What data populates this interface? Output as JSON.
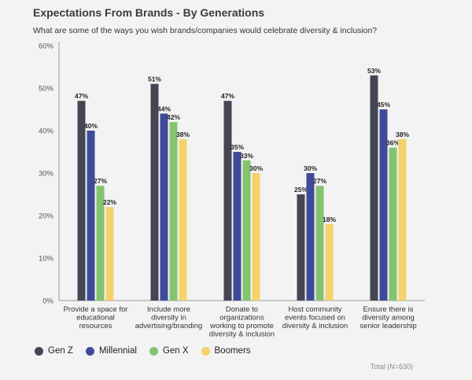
{
  "header": {
    "title": "Expectations From Brands - By Generations",
    "subtitle": "What are some of the ways you wish brands/companies would celebrate diversity & inclusion?"
  },
  "footer": {
    "note": "Total (N=630)"
  },
  "colors": {
    "Gen Z": "#444654",
    "Millennial": "#3f4b9a",
    "Gen X": "#84c36f",
    "Boomers": "#f5d36a"
  },
  "chart_data": {
    "type": "bar",
    "title": "Expectations From Brands - By Generations",
    "subtitle": "What are some of the ways you wish brands/companies would celebrate diversity & inclusion?",
    "categories": [
      [
        "Provide a space for",
        "educational",
        "resources"
      ],
      [
        "Include more",
        "diversity in",
        "advertising/branding"
      ],
      [
        "Donate to",
        "organizations",
        "working to promote",
        "diversity & inclusion"
      ],
      [
        "Host community",
        "events focused on",
        "diversity & inclusion"
      ],
      [
        "Ensure there is",
        "diversity among",
        "senior leadership"
      ]
    ],
    "series": [
      {
        "name": "Gen Z",
        "values": [
          47,
          51,
          47,
          25,
          53
        ]
      },
      {
        "name": "Millennial",
        "values": [
          40,
          44,
          35,
          30,
          45
        ]
      },
      {
        "name": "Gen X",
        "values": [
          27,
          42,
          33,
          27,
          36
        ]
      },
      {
        "name": "Boomers",
        "values": [
          22,
          38,
          30,
          18,
          38
        ]
      }
    ],
    "ylim": [
      0,
      60
    ],
    "yticks": [
      "0%",
      "10%",
      "20%",
      "30%",
      "40%",
      "50%",
      "60%"
    ],
    "value_suffix": "%",
    "legend_position": "bottom-left",
    "grid": false
  }
}
